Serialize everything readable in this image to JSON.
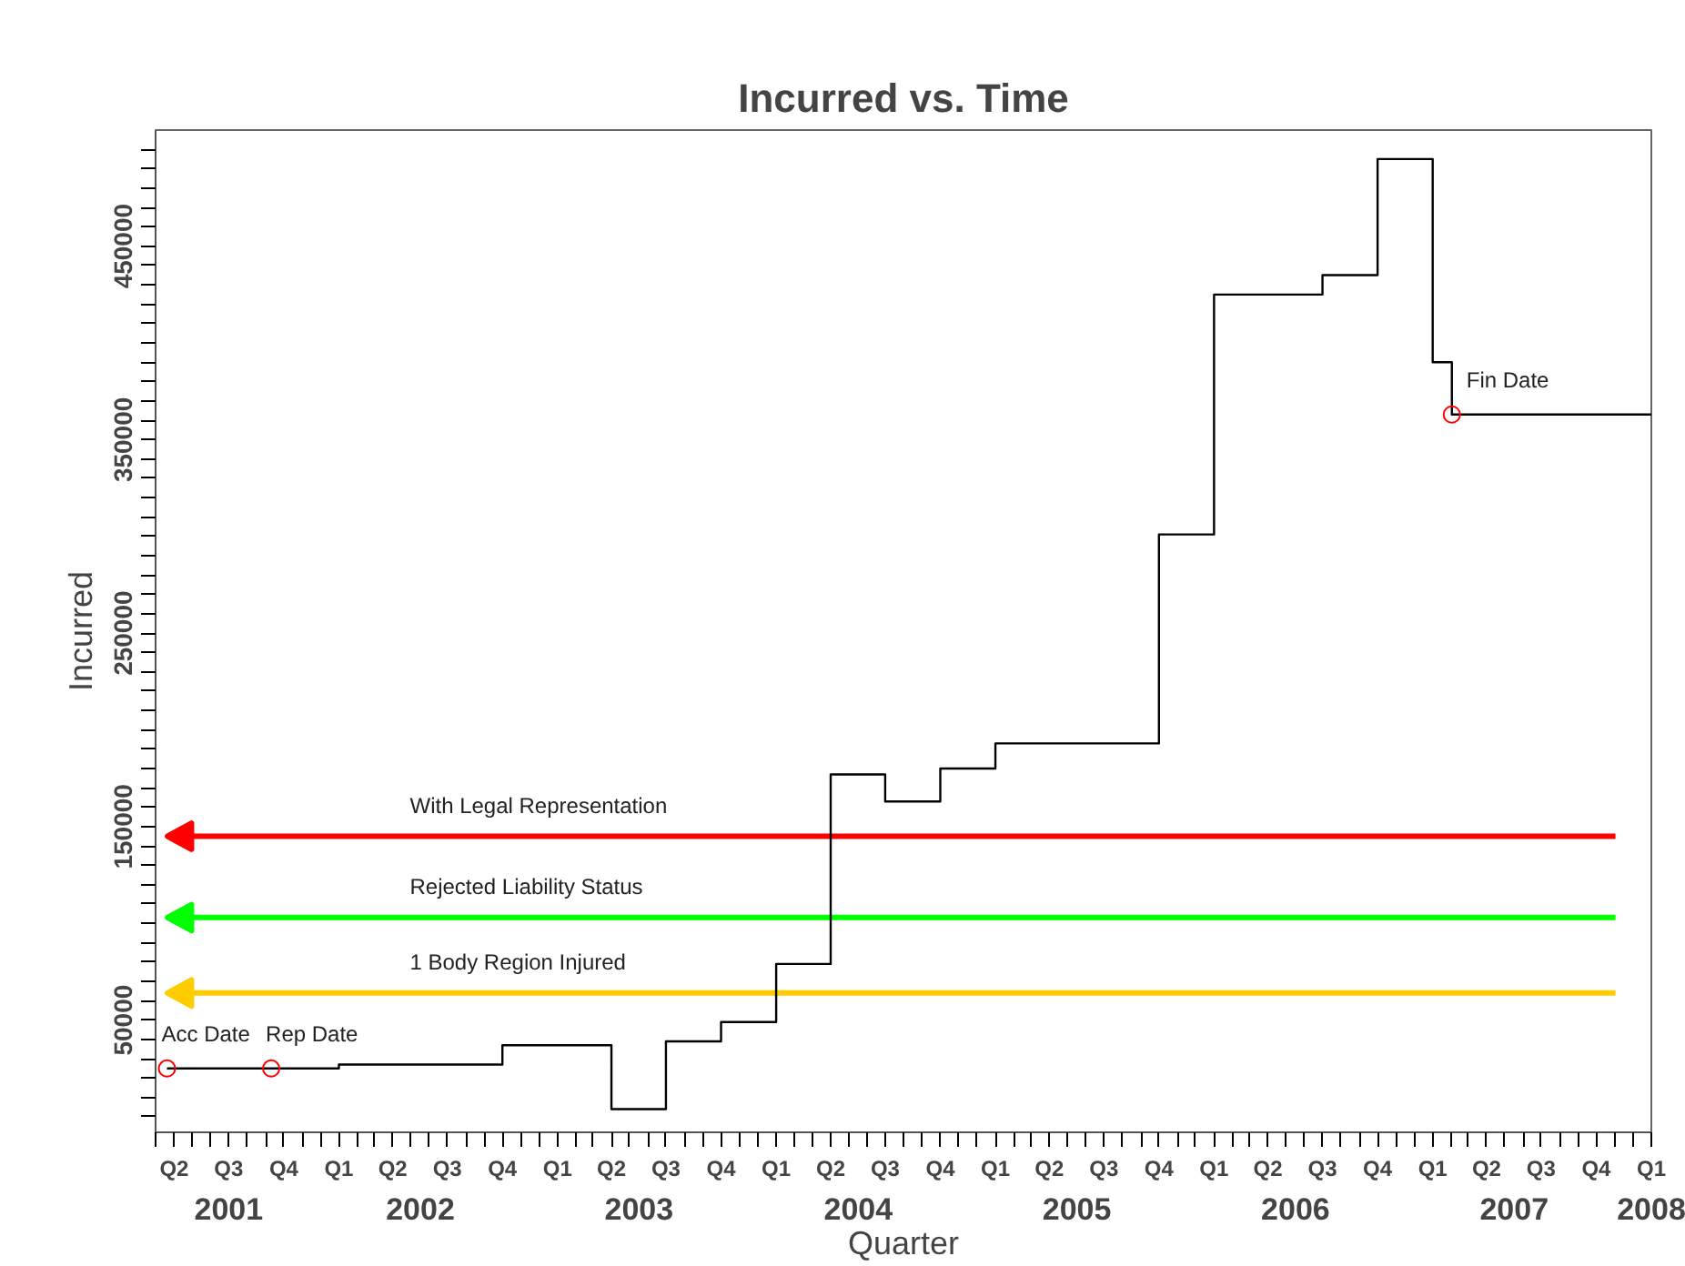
{
  "chart_data": {
    "type": "step",
    "title": "Incurred vs. Time",
    "xlabel": "Quarter",
    "ylabel": "Incurred",
    "xlim": [
      "2001-03-01",
      "2008-01-01"
    ],
    "ylim": [
      -8000,
      510000
    ],
    "xticks": [
      {
        "value": "2001-03-01",
        "label": null
      },
      {
        "value": "2001-04-01",
        "label": "Q2"
      },
      {
        "value": "2001-05-01",
        "label": null
      },
      {
        "value": "2001-06-01",
        "label": null
      },
      {
        "value": "2001-07-01",
        "label": "Q3"
      },
      {
        "value": "2001-08-01",
        "label": null
      },
      {
        "value": "2001-09-01",
        "label": null
      },
      {
        "value": "2001-10-01",
        "label": "Q4"
      },
      {
        "value": "2001-11-01",
        "label": null
      },
      {
        "value": "2001-12-01",
        "label": null
      },
      {
        "value": "2002-01-01",
        "label": "Q1"
      },
      {
        "value": "2002-02-01",
        "label": null
      },
      {
        "value": "2002-03-01",
        "label": null
      },
      {
        "value": "2002-04-01",
        "label": "Q2"
      },
      {
        "value": "2002-05-01",
        "label": null
      },
      {
        "value": "2002-06-01",
        "label": null
      },
      {
        "value": "2002-07-01",
        "label": "Q3"
      },
      {
        "value": "2002-08-01",
        "label": null
      },
      {
        "value": "2002-09-01",
        "label": null
      },
      {
        "value": "2002-10-01",
        "label": "Q4"
      },
      {
        "value": "2002-11-01",
        "label": null
      },
      {
        "value": "2002-12-01",
        "label": null
      },
      {
        "value": "2003-01-01",
        "label": "Q1"
      },
      {
        "value": "2003-02-01",
        "label": null
      },
      {
        "value": "2003-03-01",
        "label": null
      },
      {
        "value": "2003-04-01",
        "label": "Q2"
      },
      {
        "value": "2003-05-01",
        "label": null
      },
      {
        "value": "2003-06-01",
        "label": null
      },
      {
        "value": "2003-07-01",
        "label": "Q3"
      },
      {
        "value": "2003-08-01",
        "label": null
      },
      {
        "value": "2003-09-01",
        "label": null
      },
      {
        "value": "2003-10-01",
        "label": "Q4"
      },
      {
        "value": "2003-11-01",
        "label": null
      },
      {
        "value": "2003-12-01",
        "label": null
      },
      {
        "value": "2004-01-01",
        "label": "Q1"
      },
      {
        "value": "2004-02-01",
        "label": null
      },
      {
        "value": "2004-03-01",
        "label": null
      },
      {
        "value": "2004-04-01",
        "label": "Q2"
      },
      {
        "value": "2004-05-01",
        "label": null
      },
      {
        "value": "2004-06-01",
        "label": null
      },
      {
        "value": "2004-07-01",
        "label": "Q3"
      },
      {
        "value": "2004-08-01",
        "label": null
      },
      {
        "value": "2004-09-01",
        "label": null
      },
      {
        "value": "2004-10-01",
        "label": "Q4"
      },
      {
        "value": "2004-11-01",
        "label": null
      },
      {
        "value": "2004-12-01",
        "label": null
      },
      {
        "value": "2005-01-01",
        "label": "Q1"
      },
      {
        "value": "2005-02-01",
        "label": null
      },
      {
        "value": "2005-03-01",
        "label": null
      },
      {
        "value": "2005-04-01",
        "label": "Q2"
      },
      {
        "value": "2005-05-01",
        "label": null
      },
      {
        "value": "2005-06-01",
        "label": null
      },
      {
        "value": "2005-07-01",
        "label": "Q3"
      },
      {
        "value": "2005-08-01",
        "label": null
      },
      {
        "value": "2005-09-01",
        "label": null
      },
      {
        "value": "2005-10-01",
        "label": "Q4"
      },
      {
        "value": "2005-11-01",
        "label": null
      },
      {
        "value": "2005-12-01",
        "label": null
      },
      {
        "value": "2006-01-01",
        "label": "Q1"
      },
      {
        "value": "2006-02-01",
        "label": null
      },
      {
        "value": "2006-03-01",
        "label": null
      },
      {
        "value": "2006-04-01",
        "label": "Q2"
      },
      {
        "value": "2006-05-01",
        "label": null
      },
      {
        "value": "2006-06-01",
        "label": null
      },
      {
        "value": "2006-07-01",
        "label": "Q3"
      },
      {
        "value": "2006-08-01",
        "label": null
      },
      {
        "value": "2006-09-01",
        "label": null
      },
      {
        "value": "2006-10-01",
        "label": "Q4"
      },
      {
        "value": "2006-11-01",
        "label": null
      },
      {
        "value": "2006-12-01",
        "label": null
      },
      {
        "value": "2007-01-01",
        "label": "Q1"
      },
      {
        "value": "2007-02-01",
        "label": null
      },
      {
        "value": "2007-03-01",
        "label": null
      },
      {
        "value": "2007-04-01",
        "label": "Q2"
      },
      {
        "value": "2007-05-01",
        "label": null
      },
      {
        "value": "2007-06-01",
        "label": null
      },
      {
        "value": "2007-07-01",
        "label": "Q3"
      },
      {
        "value": "2007-08-01",
        "label": null
      },
      {
        "value": "2007-09-01",
        "label": null
      },
      {
        "value": "2007-10-01",
        "label": "Q4"
      },
      {
        "value": "2007-11-01",
        "label": null
      },
      {
        "value": "2007-12-01",
        "label": null
      },
      {
        "value": "2008-01-01",
        "label": "Q1"
      }
    ],
    "x2lim": [
      "2001-03-01",
      "2008-01-01"
    ],
    "x2ticks": [
      {
        "value": "2001-07-01",
        "label": "2001"
      },
      {
        "value": "2002-05-17",
        "label": "2002"
      },
      {
        "value": "2003-05-17",
        "label": "2003"
      },
      {
        "value": "2004-05-17",
        "label": "2004"
      },
      {
        "value": "2005-05-17",
        "label": "2005"
      },
      {
        "value": "2006-05-17",
        "label": "2006"
      },
      {
        "value": "2007-05-17",
        "label": "2007"
      },
      {
        "value": "2008-01-01",
        "label": "2008"
      }
    ],
    "yticks": [
      {
        "value": 0,
        "label": null
      },
      {
        "value": 10000,
        "label": null
      },
      {
        "value": 20000,
        "label": null
      },
      {
        "value": 30000,
        "label": null
      },
      {
        "value": 40000,
        "label": null
      },
      50000,
      {
        "value": 60000,
        "label": null
      },
      {
        "value": 70000,
        "label": null
      },
      {
        "value": 80000,
        "label": null
      },
      {
        "value": 90000,
        "label": null
      },
      {
        "value": 100000,
        "label": null
      },
      {
        "value": 110000,
        "label": null
      },
      {
        "value": 120000,
        "label": null
      },
      {
        "value": 130000,
        "label": null
      },
      {
        "value": 140000,
        "label": null
      },
      150000,
      {
        "value": 160000,
        "label": null
      },
      {
        "value": 170000,
        "label": null
      },
      {
        "value": 180000,
        "label": null
      },
      {
        "value": 190000,
        "label": null
      },
      {
        "value": 200000,
        "label": null
      },
      {
        "value": 210000,
        "label": null
      },
      {
        "value": 220000,
        "label": null
      },
      {
        "value": 230000,
        "label": null
      },
      {
        "value": 240000,
        "label": null
      },
      250000,
      {
        "value": 260000,
        "label": null
      },
      {
        "value": 270000,
        "label": null
      },
      {
        "value": 280000,
        "label": null
      },
      {
        "value": 290000,
        "label": null
      },
      {
        "value": 300000,
        "label": null
      },
      {
        "value": 310000,
        "label": null
      },
      {
        "value": 320000,
        "label": null
      },
      {
        "value": 330000,
        "label": null
      },
      {
        "value": 340000,
        "label": null
      },
      350000,
      {
        "value": 360000,
        "label": null
      },
      {
        "value": 370000,
        "label": null
      },
      {
        "value": 380000,
        "label": null
      },
      {
        "value": 390000,
        "label": null
      },
      {
        "value": 400000,
        "label": null
      },
      {
        "value": 410000,
        "label": null
      },
      {
        "value": 420000,
        "label": null
      },
      {
        "value": 430000,
        "label": null
      },
      {
        "value": 440000,
        "label": null
      },
      450000,
      {
        "value": 460000,
        "label": null
      },
      {
        "value": 470000,
        "label": null
      },
      {
        "value": 480000,
        "label": null
      },
      {
        "value": 490000,
        "label": null
      },
      {
        "value": 500000,
        "label": null
      }
    ],
    "series": [
      {
        "color": "#000000",
        "x": [
          "2001-03-20",
          "2002-01-01",
          "2002-10-01",
          "2003-04-01",
          "2003-07-01",
          "2003-10-01",
          "2004-01-01",
          "2004-04-01",
          "2004-07-01",
          "2004-10-01",
          "2005-01-01",
          "2005-10-01",
          "2006-01-01",
          "2006-07-01",
          "2006-10-01",
          "2007-01-01",
          "2007-02-02",
          "2008-01-01"
        ],
        "values": [
          25000,
          27000,
          37000,
          4000,
          39000,
          49000,
          79000,
          177000,
          163000,
          180000,
          193000,
          301000,
          425000,
          435000,
          495000,
          390000,
          363000,
          363000
        ]
      },
      {
        "type": "scatter",
        "marker": "circle",
        "color": "#ff0000",
        "x": [
          "2001-03-20",
          "2001-09-10",
          "2007-02-02"
        ],
        "values": [
          25000,
          25000,
          363000
        ]
      }
    ],
    "ref_lines": [
      {
        "axis": "y",
        "value": 145000,
        "label": "With Legal Representation",
        "color": "#ff0000"
      },
      {
        "axis": "y",
        "value": 103000,
        "label": "Rejected Liability Status",
        "color": "#00ff00"
      },
      {
        "axis": "y",
        "value": 64000,
        "label": "1 Body Region Injured",
        "color": "#ffcc00"
      }
    ],
    "annotations": [
      {
        "text": "Acc Date",
        "x": "2001-03-20",
        "y": 25000
      },
      {
        "text": "Rep Date",
        "x": "2001-09-10",
        "y": 25000
      },
      {
        "text": "Fin Date",
        "x": "2007-02-02",
        "y": 363000
      }
    ]
  }
}
